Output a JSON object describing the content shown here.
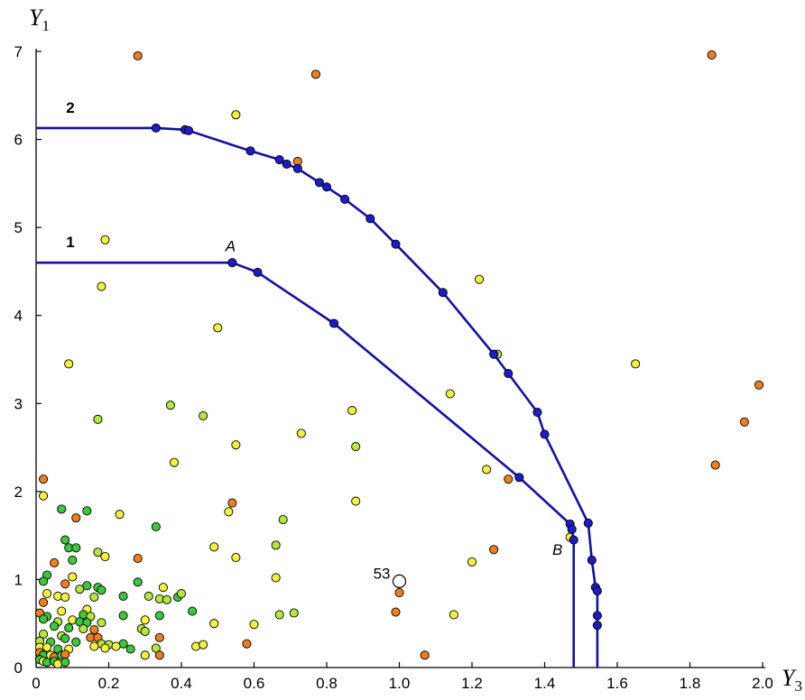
{
  "chart_data": {
    "type": "scatter",
    "xlabel": "Y",
    "xlabel_sub": "3",
    "ylabel": "Y",
    "ylabel_sub": "1",
    "xlim": [
      0,
      2.0
    ],
    "ylim": [
      0,
      7
    ],
    "xticks": [
      "0",
      "0.2",
      "0.4",
      "0.6",
      "0.8",
      "1.0",
      "1.2",
      "1.4",
      "1.6",
      "1.8",
      "2.0"
    ],
    "yticks": [
      "0",
      "1",
      "2",
      "3",
      "4",
      "5",
      "6",
      "7"
    ],
    "colors": {
      "curve": "#1010a8",
      "curve_point": "#1c1cc8",
      "orange": "#f07e1e",
      "yellow": "#f2f23c",
      "lightgreen": "#b4e63c",
      "green": "#3cc83c"
    },
    "curves": [
      {
        "name": "1",
        "flat_start_x": 0.0,
        "points": [
          [
            0.54,
            4.6
          ],
          [
            0.61,
            4.49
          ],
          [
            0.82,
            3.91
          ],
          [
            1.33,
            2.16
          ],
          [
            1.47,
            1.63
          ],
          [
            1.475,
            1.57
          ],
          [
            1.48,
            1.45
          ]
        ],
        "vertical_to_y": 0
      },
      {
        "name": "2",
        "flat_start_x": 0.0,
        "points": [
          [
            0.33,
            6.13
          ],
          [
            0.41,
            6.11
          ],
          [
            0.42,
            6.1
          ],
          [
            0.59,
            5.87
          ],
          [
            0.67,
            5.77
          ],
          [
            0.69,
            5.72
          ],
          [
            0.72,
            5.67
          ],
          [
            0.78,
            5.51
          ],
          [
            0.8,
            5.46
          ],
          [
            0.85,
            5.32
          ],
          [
            0.92,
            5.1
          ],
          [
            0.99,
            4.81
          ],
          [
            1.12,
            4.26
          ],
          [
            1.26,
            3.56
          ],
          [
            1.3,
            3.34
          ],
          [
            1.38,
            2.9
          ],
          [
            1.4,
            2.65
          ],
          [
            1.52,
            1.64
          ],
          [
            1.53,
            1.22
          ],
          [
            1.54,
            0.91
          ],
          [
            1.545,
            0.87
          ],
          [
            1.545,
            0.59
          ],
          [
            1.545,
            0.48
          ]
        ],
        "vertical_to_y": 0
      }
    ],
    "annotations": [
      {
        "text": "A",
        "x": 0.55,
        "y": 4.7
      },
      {
        "text": "B",
        "x": 1.47,
        "y": 1.3
      },
      {
        "text": "53",
        "x": 1.0,
        "y": 1.0
      }
    ],
    "scatter_points": [
      {
        "x": 0.28,
        "y": 6.95,
        "c": "orange"
      },
      {
        "x": 0.77,
        "y": 6.74,
        "c": "orange"
      },
      {
        "x": 1.86,
        "y": 6.96,
        "c": "orange"
      },
      {
        "x": 0.55,
        "y": 6.28,
        "c": "yellow"
      },
      {
        "x": 0.72,
        "y": 5.75,
        "c": "orange"
      },
      {
        "x": 0.19,
        "y": 4.86,
        "c": "yellow"
      },
      {
        "x": 0.18,
        "y": 4.33,
        "c": "yellow"
      },
      {
        "x": 1.22,
        "y": 4.41,
        "c": "yellow"
      },
      {
        "x": 0.5,
        "y": 3.86,
        "c": "yellow"
      },
      {
        "x": 0.09,
        "y": 3.45,
        "c": "yellow"
      },
      {
        "x": 1.27,
        "y": 3.56,
        "c": "lightgreen"
      },
      {
        "x": 1.65,
        "y": 3.45,
        "c": "yellow"
      },
      {
        "x": 1.14,
        "y": 3.11,
        "c": "yellow"
      },
      {
        "x": 1.99,
        "y": 3.21,
        "c": "orange"
      },
      {
        "x": 0.37,
        "y": 2.98,
        "c": "lightgreen"
      },
      {
        "x": 0.46,
        "y": 2.86,
        "c": "lightgreen"
      },
      {
        "x": 0.17,
        "y": 2.82,
        "c": "lightgreen"
      },
      {
        "x": 0.87,
        "y": 2.92,
        "c": "yellow"
      },
      {
        "x": 1.95,
        "y": 2.79,
        "c": "orange"
      },
      {
        "x": 0.73,
        "y": 2.66,
        "c": "yellow"
      },
      {
        "x": 0.55,
        "y": 2.53,
        "c": "yellow"
      },
      {
        "x": 0.88,
        "y": 2.51,
        "c": "lightgreen"
      },
      {
        "x": 0.38,
        "y": 2.33,
        "c": "yellow"
      },
      {
        "x": 1.24,
        "y": 2.25,
        "c": "yellow"
      },
      {
        "x": 1.87,
        "y": 2.3,
        "c": "orange"
      },
      {
        "x": 1.3,
        "y": 2.14,
        "c": "orange"
      },
      {
        "x": 0.02,
        "y": 2.14,
        "c": "orange"
      },
      {
        "x": 0.02,
        "y": 1.95,
        "c": "yellow"
      },
      {
        "x": 0.54,
        "y": 1.87,
        "c": "orange"
      },
      {
        "x": 0.88,
        "y": 1.89,
        "c": "yellow"
      },
      {
        "x": 0.07,
        "y": 1.8,
        "c": "green"
      },
      {
        "x": 0.14,
        "y": 1.78,
        "c": "green"
      },
      {
        "x": 0.23,
        "y": 1.74,
        "c": "yellow"
      },
      {
        "x": 0.53,
        "y": 1.77,
        "c": "yellow"
      },
      {
        "x": 0.11,
        "y": 1.7,
        "c": "orange"
      },
      {
        "x": 0.68,
        "y": 1.68,
        "c": "lightgreen"
      },
      {
        "x": 0.33,
        "y": 1.6,
        "c": "green"
      },
      {
        "x": 1.47,
        "y": 1.48,
        "c": "yellow"
      },
      {
        "x": 0.08,
        "y": 1.45,
        "c": "green"
      },
      {
        "x": 0.09,
        "y": 1.36,
        "c": "green"
      },
      {
        "x": 0.11,
        "y": 1.36,
        "c": "green"
      },
      {
        "x": 0.49,
        "y": 1.37,
        "c": "yellow"
      },
      {
        "x": 0.66,
        "y": 1.39,
        "c": "lightgreen"
      },
      {
        "x": 1.26,
        "y": 1.34,
        "c": "orange"
      },
      {
        "x": 0.17,
        "y": 1.31,
        "c": "lightgreen"
      },
      {
        "x": 0.19,
        "y": 1.26,
        "c": "yellow"
      },
      {
        "x": 0.28,
        "y": 1.24,
        "c": "orange"
      },
      {
        "x": 0.55,
        "y": 1.25,
        "c": "yellow"
      },
      {
        "x": 0.1,
        "y": 1.22,
        "c": "green"
      },
      {
        "x": 1.2,
        "y": 1.2,
        "c": "yellow"
      },
      {
        "x": 0.05,
        "y": 1.19,
        "c": "orange"
      },
      {
        "x": 0.03,
        "y": 1.05,
        "c": "green"
      },
      {
        "x": 0.02,
        "y": 0.98,
        "c": "green"
      },
      {
        "x": 0.1,
        "y": 1.03,
        "c": "yellow"
      },
      {
        "x": 0.66,
        "y": 1.02,
        "c": "yellow"
      },
      {
        "x": 0.08,
        "y": 0.95,
        "c": "orange"
      },
      {
        "x": 0.14,
        "y": 0.93,
        "c": "green"
      },
      {
        "x": 0.17,
        "y": 0.91,
        "c": "green"
      },
      {
        "x": 0.28,
        "y": 0.97,
        "c": "green"
      },
      {
        "x": 0.35,
        "y": 0.91,
        "c": "yellow"
      },
      {
        "x": 0.12,
        "y": 0.89,
        "c": "lightgreen"
      },
      {
        "x": 0.18,
        "y": 0.88,
        "c": "green"
      },
      {
        "x": 0.03,
        "y": 0.84,
        "c": "yellow"
      },
      {
        "x": 0.06,
        "y": 0.81,
        "c": "yellow"
      },
      {
        "x": 0.08,
        "y": 0.8,
        "c": "yellow"
      },
      {
        "x": 0.16,
        "y": 0.8,
        "c": "lightgreen"
      },
      {
        "x": 0.24,
        "y": 0.81,
        "c": "green"
      },
      {
        "x": 0.31,
        "y": 0.81,
        "c": "lightgreen"
      },
      {
        "x": 0.34,
        "y": 0.78,
        "c": "lightgreen"
      },
      {
        "x": 0.36,
        "y": 0.77,
        "c": "lightgreen"
      },
      {
        "x": 0.39,
        "y": 0.8,
        "c": "green"
      },
      {
        "x": 0.4,
        "y": 0.84,
        "c": "lightgreen"
      },
      {
        "x": 1.0,
        "y": 0.85,
        "c": "orange"
      },
      {
        "x": 0.02,
        "y": 0.74,
        "c": "orange"
      },
      {
        "x": 0.14,
        "y": 0.66,
        "c": "yellow"
      },
      {
        "x": 0.07,
        "y": 0.64,
        "c": "yellow"
      },
      {
        "x": 0.43,
        "y": 0.64,
        "c": "green"
      },
      {
        "x": 0.67,
        "y": 0.6,
        "c": "lightgreen"
      },
      {
        "x": 0.71,
        "y": 0.62,
        "c": "lightgreen"
      },
      {
        "x": 0.99,
        "y": 0.63,
        "c": "orange"
      },
      {
        "x": 1.15,
        "y": 0.6,
        "c": "yellow"
      },
      {
        "x": 0.01,
        "y": 0.62,
        "c": "orange"
      },
      {
        "x": 0.03,
        "y": 0.58,
        "c": "green"
      },
      {
        "x": 0.13,
        "y": 0.6,
        "c": "green"
      },
      {
        "x": 0.15,
        "y": 0.58,
        "c": "lightgreen"
      },
      {
        "x": 0.24,
        "y": 0.59,
        "c": "green"
      },
      {
        "x": 0.34,
        "y": 0.59,
        "c": "green"
      },
      {
        "x": 0.02,
        "y": 0.55,
        "c": "green"
      },
      {
        "x": 0.06,
        "y": 0.52,
        "c": "lightgreen"
      },
      {
        "x": 0.1,
        "y": 0.54,
        "c": "yellow"
      },
      {
        "x": 0.12,
        "y": 0.52,
        "c": "green"
      },
      {
        "x": 0.14,
        "y": 0.51,
        "c": "green"
      },
      {
        "x": 0.18,
        "y": 0.51,
        "c": "lightgreen"
      },
      {
        "x": 0.3,
        "y": 0.54,
        "c": "yellow"
      },
      {
        "x": 0.49,
        "y": 0.5,
        "c": "yellow"
      },
      {
        "x": 0.6,
        "y": 0.49,
        "c": "yellow"
      },
      {
        "x": 0.05,
        "y": 0.47,
        "c": "green"
      },
      {
        "x": 0.09,
        "y": 0.45,
        "c": "green"
      },
      {
        "x": 0.13,
        "y": 0.44,
        "c": "lightgreen"
      },
      {
        "x": 0.16,
        "y": 0.43,
        "c": "orange"
      },
      {
        "x": 0.29,
        "y": 0.44,
        "c": "lightgreen"
      },
      {
        "x": 0.3,
        "y": 0.41,
        "c": "lightgreen"
      },
      {
        "x": 0.02,
        "y": 0.38,
        "c": "lightgreen"
      },
      {
        "x": 0.07,
        "y": 0.36,
        "c": "lightgreen"
      },
      {
        "x": 0.08,
        "y": 0.33,
        "c": "green"
      },
      {
        "x": 0.15,
        "y": 0.34,
        "c": "orange"
      },
      {
        "x": 0.17,
        "y": 0.34,
        "c": "orange"
      },
      {
        "x": 0.34,
        "y": 0.34,
        "c": "orange"
      },
      {
        "x": 0.01,
        "y": 0.3,
        "c": "lightgreen"
      },
      {
        "x": 0.04,
        "y": 0.29,
        "c": "green"
      },
      {
        "x": 0.11,
        "y": 0.29,
        "c": "green"
      },
      {
        "x": 0.18,
        "y": 0.27,
        "c": "lightgreen"
      },
      {
        "x": 0.2,
        "y": 0.26,
        "c": "lightgreen"
      },
      {
        "x": 0.24,
        "y": 0.27,
        "c": "green"
      },
      {
        "x": 0.58,
        "y": 0.27,
        "c": "orange"
      },
      {
        "x": 0.01,
        "y": 0.23,
        "c": "yellow"
      },
      {
        "x": 0.03,
        "y": 0.23,
        "c": "yellow"
      },
      {
        "x": 0.06,
        "y": 0.21,
        "c": "green"
      },
      {
        "x": 0.09,
        "y": 0.21,
        "c": "yellow"
      },
      {
        "x": 0.16,
        "y": 0.24,
        "c": "yellow"
      },
      {
        "x": 0.19,
        "y": 0.22,
        "c": "yellow"
      },
      {
        "x": 0.22,
        "y": 0.24,
        "c": "yellow"
      },
      {
        "x": 0.26,
        "y": 0.21,
        "c": "green"
      },
      {
        "x": 0.33,
        "y": 0.22,
        "c": "lightgreen"
      },
      {
        "x": 0.44,
        "y": 0.24,
        "c": "yellow"
      },
      {
        "x": 0.46,
        "y": 0.26,
        "c": "yellow"
      },
      {
        "x": 0.01,
        "y": 0.17,
        "c": "orange"
      },
      {
        "x": 0.02,
        "y": 0.14,
        "c": "green"
      },
      {
        "x": 0.04,
        "y": 0.14,
        "c": "yellow"
      },
      {
        "x": 0.05,
        "y": 0.12,
        "c": "orange"
      },
      {
        "x": 0.07,
        "y": 0.14,
        "c": "green"
      },
      {
        "x": 0.08,
        "y": 0.15,
        "c": "orange"
      },
      {
        "x": 0.3,
        "y": 0.14,
        "c": "yellow"
      },
      {
        "x": 0.34,
        "y": 0.14,
        "c": "orange"
      },
      {
        "x": 1.07,
        "y": 0.14,
        "c": "orange"
      },
      {
        "x": 0.01,
        "y": 0.09,
        "c": "green"
      },
      {
        "x": 0.02,
        "y": 0.07,
        "c": "yellow"
      },
      {
        "x": 0.03,
        "y": 0.06,
        "c": "green"
      },
      {
        "x": 0.05,
        "y": 0.07,
        "c": "green"
      },
      {
        "x": 0.06,
        "y": 0.04,
        "c": "yellow"
      },
      {
        "x": 0.08,
        "y": 0.06,
        "c": "green"
      }
    ],
    "highlight_point": {
      "x": 1.0,
      "y": 0.98,
      "label": "53"
    }
  }
}
